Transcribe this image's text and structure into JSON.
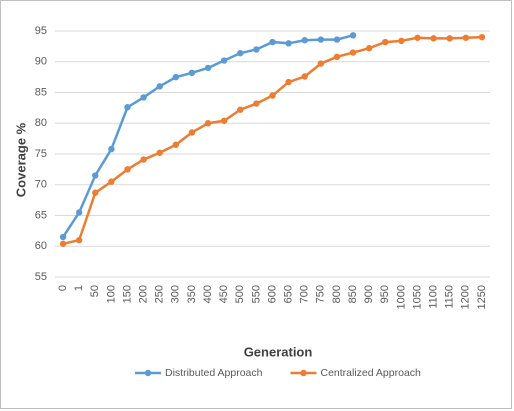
{
  "chart_data": {
    "type": "line",
    "x_label": "Generation",
    "y_label": "Coverage %",
    "categories": [
      "0",
      "1",
      "50",
      "100",
      "150",
      "200",
      "250",
      "300",
      "350",
      "400",
      "450",
      "500",
      "550",
      "600",
      "650",
      "700",
      "750",
      "800",
      "850",
      "900",
      "950",
      "1000",
      "1050",
      "1100",
      "1150",
      "1200",
      "1250"
    ],
    "series": [
      {
        "name": "Distributed Approach",
        "color": "#5b9bd5",
        "values": [
          61.5,
          65.5,
          71.5,
          75.8,
          82.6,
          84.2,
          86,
          87.5,
          88.2,
          89,
          90.2,
          91.4,
          92,
          93.2,
          93,
          93.5,
          93.6,
          93.6,
          94.3,
          null,
          null,
          null,
          null,
          null,
          null,
          null,
          null
        ]
      },
      {
        "name": "Centralized Approach",
        "color": "#ed7d31",
        "values": [
          60.4,
          61,
          68.7,
          70.5,
          72.5,
          74.1,
          75.2,
          76.5,
          78.5,
          80,
          80.4,
          82.2,
          83.2,
          84.5,
          86.7,
          87.6,
          89.7,
          90.8,
          91.5,
          92.2,
          93.2,
          93.4,
          93.9,
          93.8,
          93.8,
          93.9,
          94
        ]
      }
    ],
    "ylim": [
      55,
      95
    ],
    "yticks": [
      55,
      60,
      65,
      70,
      75,
      80,
      85,
      90,
      95
    ],
    "grid": true,
    "legend": "bottom"
  }
}
